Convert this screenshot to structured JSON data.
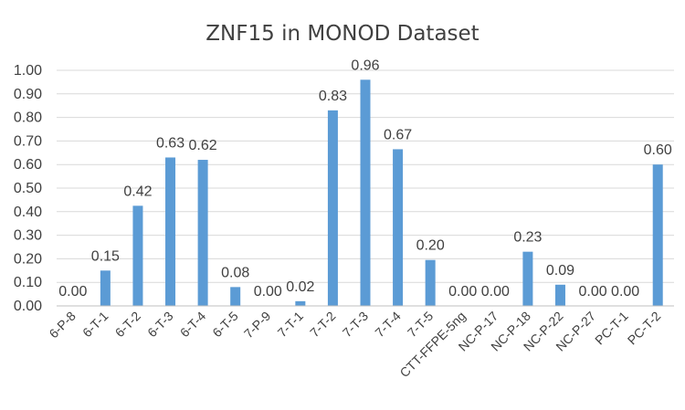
{
  "chart_data": {
    "type": "bar",
    "title": "ZNF15 in MONOD Dataset",
    "xlabel": "",
    "ylabel": "",
    "ylim": [
      0,
      1.0
    ],
    "yticks": [
      "0.00",
      "0.10",
      "0.20",
      "0.30",
      "0.40",
      "0.50",
      "0.60",
      "0.70",
      "0.80",
      "0.90",
      "1.00"
    ],
    "grid": true,
    "legend": "none",
    "bar_color": "#5b9bd5",
    "categories": [
      "6-P-8",
      "6-T-1",
      "6-T-2",
      "6-T-3",
      "6-T-4",
      "6-T-5",
      "7-P-9",
      "7-T-1",
      "7-T-2",
      "7-T-3",
      "7-T-4",
      "7-T-5",
      "CTT-FFPE-5ng",
      "NC-P-17",
      "NC-P-18",
      "NC-P-22",
      "NC-P-27",
      "PC-T-1",
      "PC-T-2"
    ],
    "values": [
      0.0,
      0.15,
      0.425,
      0.63,
      0.62,
      0.08,
      0.0,
      0.02,
      0.83,
      0.96,
      0.665,
      0.195,
      0.0,
      0.0,
      0.23,
      0.09,
      0.0,
      0.0,
      0.6
    ],
    "data_labels": [
      "0.00",
      "0.15",
      "0.42",
      "0.63",
      "0.62",
      "0.08",
      "0.00",
      "0.02",
      "0.83",
      "0.96",
      "0.67",
      "0.20",
      "0.00",
      "0.00",
      "0.23",
      "0.09",
      "0.00",
      "0.00",
      "0.60"
    ]
  }
}
